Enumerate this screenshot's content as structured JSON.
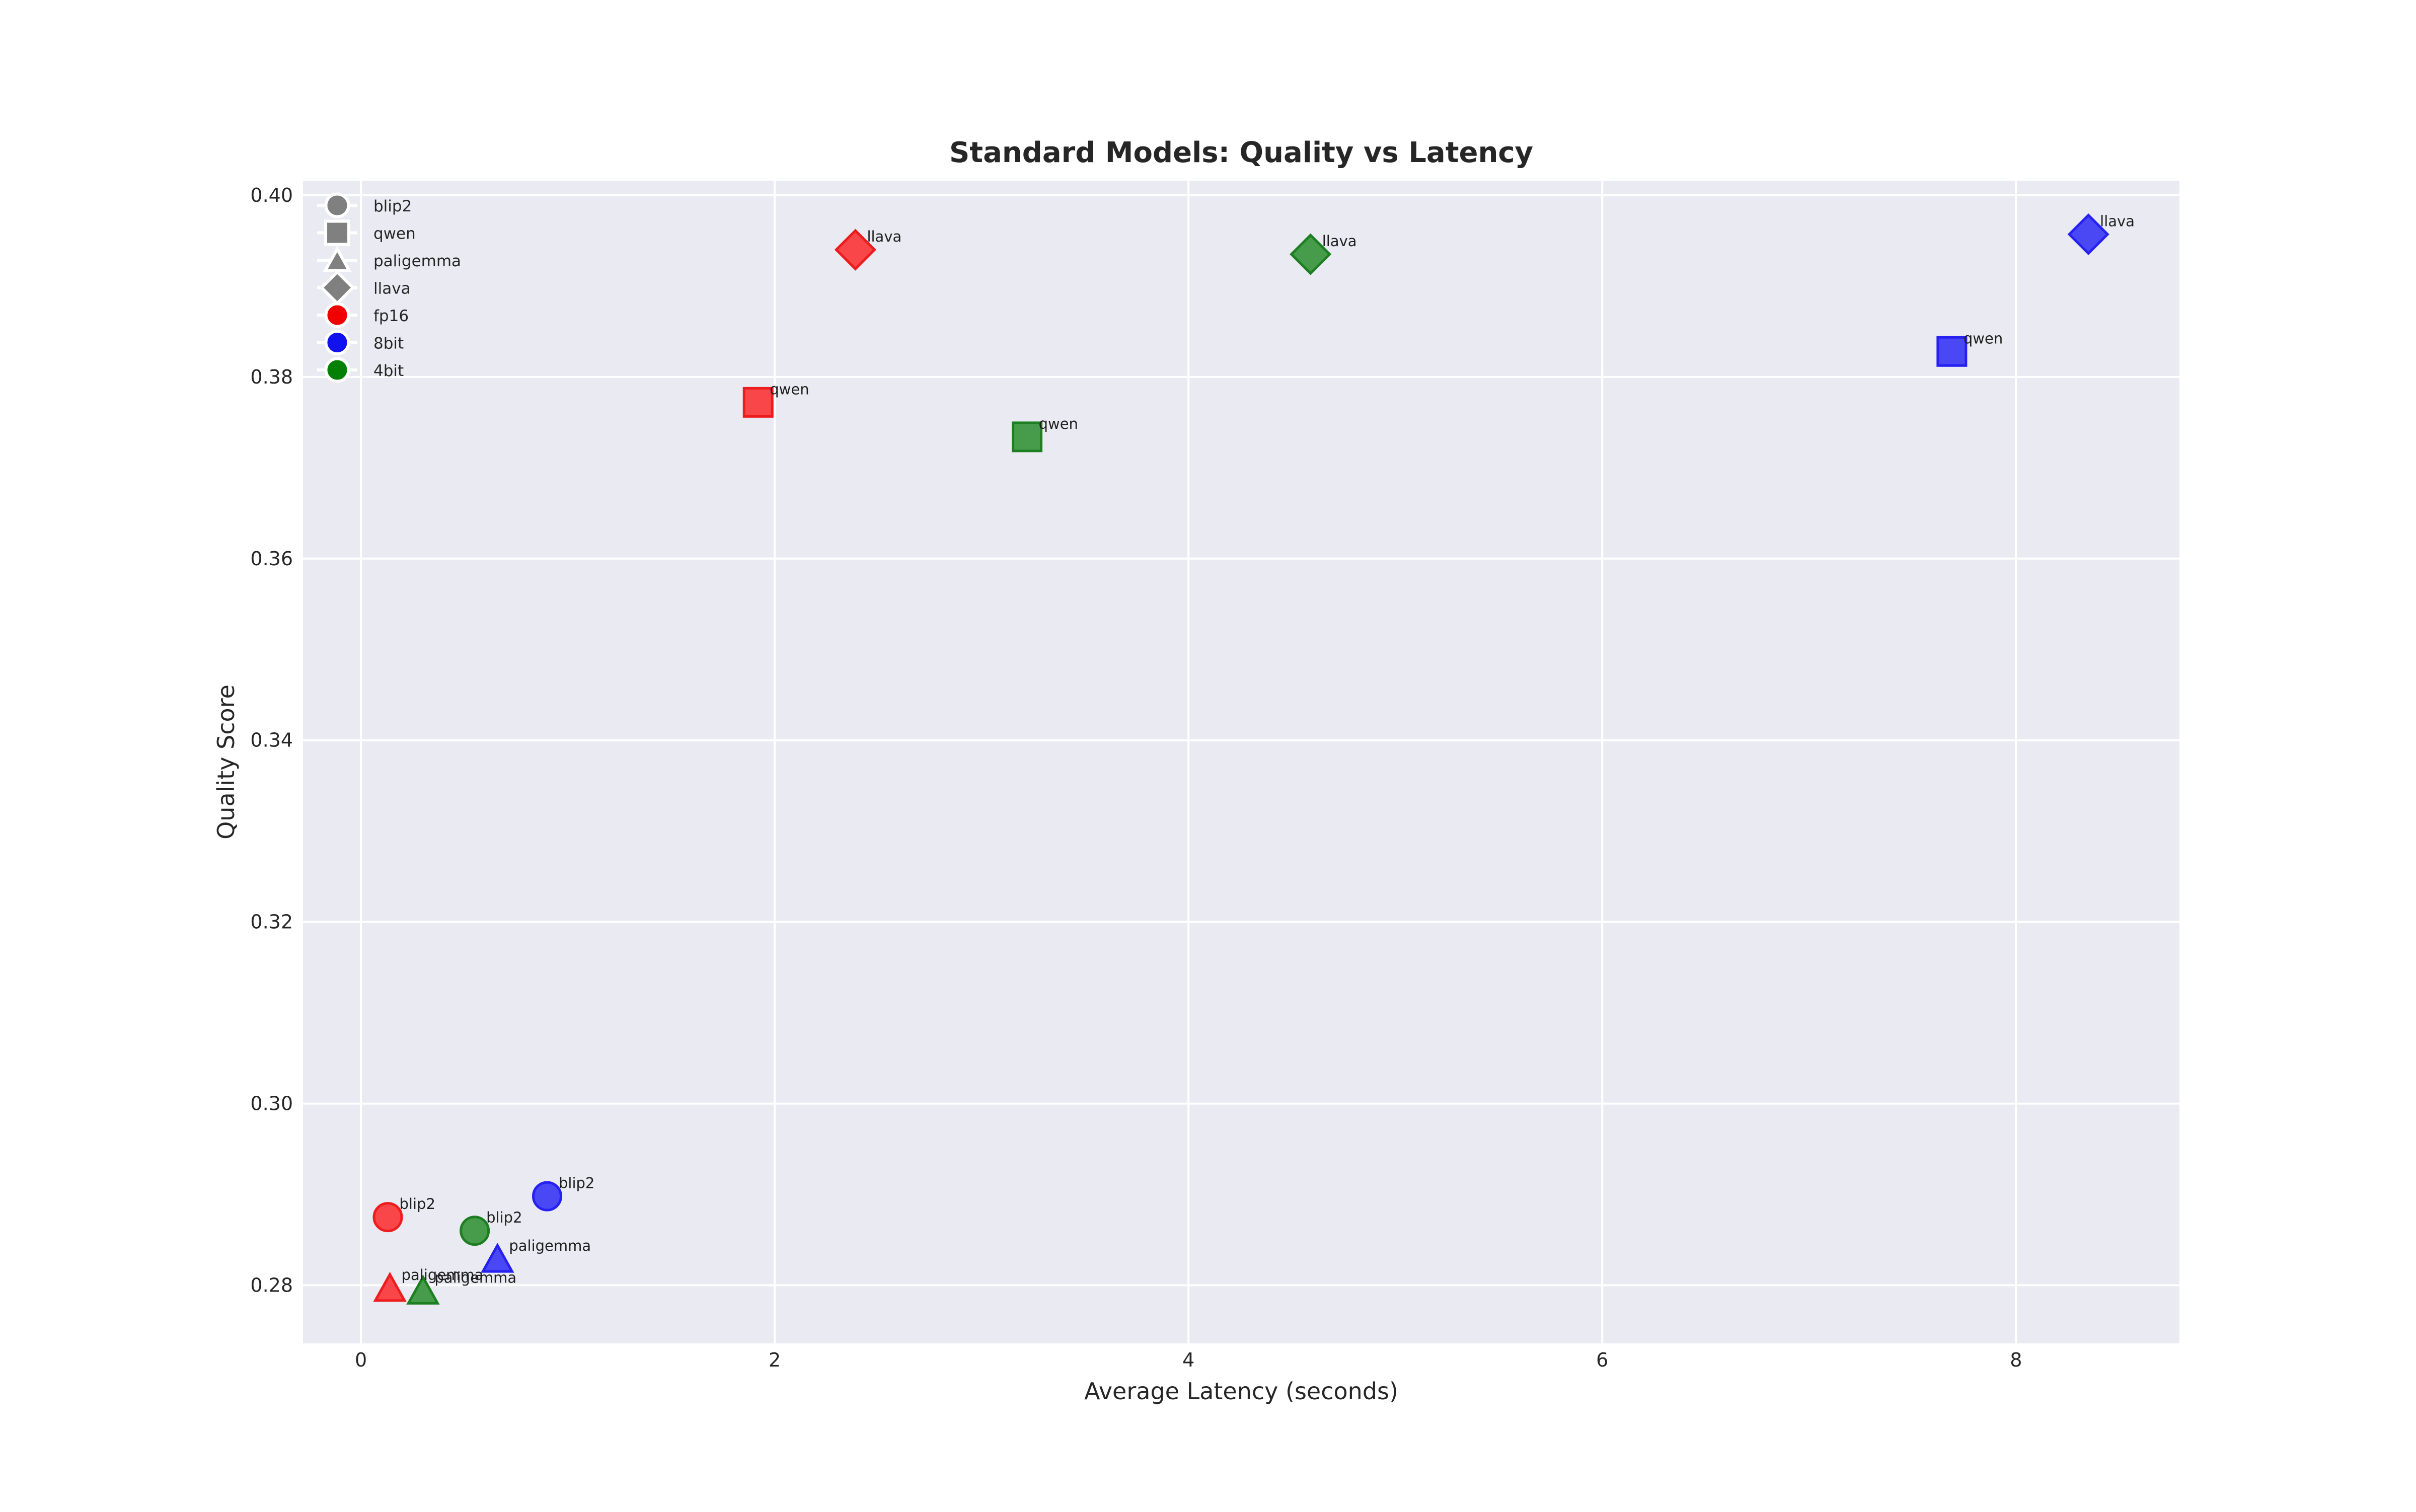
{
  "chart_data": {
    "type": "scatter",
    "title": "Standard Models: Quality vs Latency",
    "xlabel": "Average Latency (seconds)",
    "ylabel": "Quality Score",
    "xlim": [
      -0.28,
      8.79
    ],
    "ylim": [
      0.2736,
      0.4016
    ],
    "xticks": {
      "values": [
        0,
        2,
        4,
        6,
        8
      ],
      "labels": [
        "0",
        "2",
        "4",
        "6",
        "8"
      ]
    },
    "yticks": {
      "values": [
        0.28,
        0.3,
        0.32,
        0.34,
        0.36,
        0.38,
        0.4
      ],
      "labels": [
        "0.28",
        "0.30",
        "0.32",
        "0.34",
        "0.36",
        "0.38",
        "0.40"
      ]
    },
    "grid": true,
    "legend_position": "upper left",
    "plot_background": "#eaeaf2",
    "grid_color": "#ffffff",
    "figure_background": "#ffffff",
    "text_color": "#262626",
    "marker_shape_by_model": {
      "blip2": "circle",
      "qwen": "square",
      "paligemma": "triangle",
      "llava": "diamond"
    },
    "color_by_precision": {
      "fp16": {
        "fill": "#f94749",
        "edge": "#ed1c1e"
      },
      "8bit": {
        "fill": "#4a47f5",
        "edge": "#2621f0"
      },
      "4bit": {
        "fill": "#469c4a",
        "edge": "#1d7f21"
      }
    },
    "points": [
      {
        "model": "blip2",
        "precision": "fp16",
        "x": 0.13,
        "y": 0.2875,
        "label": "blip2"
      },
      {
        "model": "blip2",
        "precision": "8bit",
        "x": 0.9,
        "y": 0.2898,
        "label": "blip2"
      },
      {
        "model": "blip2",
        "precision": "4bit",
        "x": 0.55,
        "y": 0.286,
        "label": "blip2"
      },
      {
        "model": "qwen",
        "precision": "fp16",
        "x": 1.92,
        "y": 0.3772,
        "label": "qwen"
      },
      {
        "model": "qwen",
        "precision": "8bit",
        "x": 7.69,
        "y": 0.3828,
        "label": "qwen"
      },
      {
        "model": "qwen",
        "precision": "4bit",
        "x": 3.22,
        "y": 0.3734,
        "label": "qwen"
      },
      {
        "model": "paligemma",
        "precision": "fp16",
        "x": 0.14,
        "y": 0.2797,
        "label": "paligemma"
      },
      {
        "model": "paligemma",
        "precision": "8bit",
        "x": 0.66,
        "y": 0.2829,
        "label": "paligemma"
      },
      {
        "model": "paligemma",
        "precision": "4bit",
        "x": 0.3,
        "y": 0.2794,
        "label": "paligemma"
      },
      {
        "model": "llava",
        "precision": "fp16",
        "x": 2.39,
        "y": 0.394,
        "label": "llava"
      },
      {
        "model": "llava",
        "precision": "8bit",
        "x": 8.35,
        "y": 0.3957,
        "label": "llava"
      },
      {
        "model": "llava",
        "precision": "4bit",
        "x": 4.59,
        "y": 0.3935,
        "label": "llava"
      }
    ],
    "legend": {
      "items": [
        {
          "label": "blip2",
          "shape": "circle",
          "fill": "#808080"
        },
        {
          "label": "qwen",
          "shape": "square",
          "fill": "#808080"
        },
        {
          "label": "paligemma",
          "shape": "triangle",
          "fill": "#808080"
        },
        {
          "label": "llava",
          "shape": "diamond",
          "fill": "#808080"
        },
        {
          "label": "fp16",
          "shape": "circle",
          "fill": "#f00000"
        },
        {
          "label": "8bit",
          "shape": "circle",
          "fill": "#1212ee"
        },
        {
          "label": "4bit",
          "shape": "circle",
          "fill": "#048004"
        }
      ]
    }
  }
}
